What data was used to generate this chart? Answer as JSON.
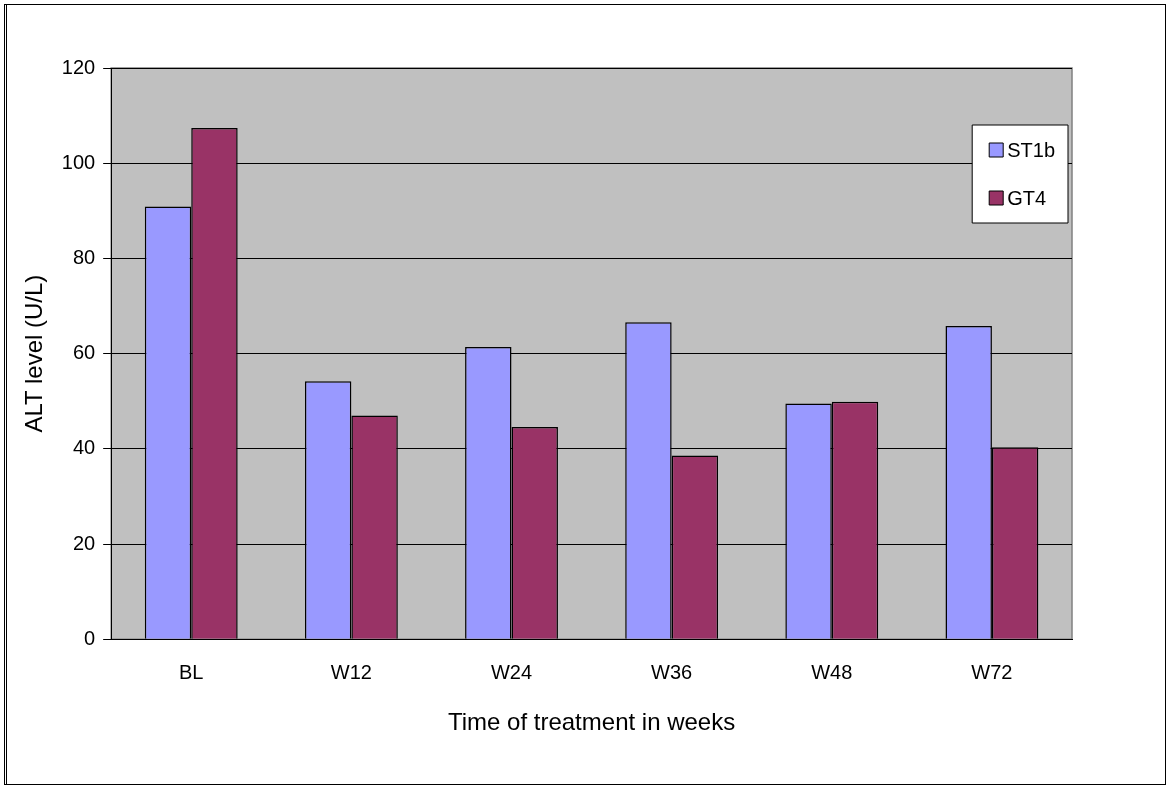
{
  "chart_data": {
    "type": "bar",
    "xlabel": "Time of treatment in weeks",
    "ylabel": "ALT level (U/L)",
    "categories": [
      "BL",
      "W12",
      "W24",
      "W36",
      "W48",
      "W72"
    ],
    "series": [
      {
        "name": "ST1b",
        "color": "#9999ff",
        "values": [
          90.9,
          54.2,
          61.4,
          66.6,
          49.5,
          65.8
        ]
      },
      {
        "name": "GT4",
        "color": "#993366",
        "values": [
          107.4,
          47.0,
          44.6,
          38.6,
          49.9,
          40.3
        ]
      }
    ],
    "ylim": [
      0,
      120
    ],
    "yticks": [
      0,
      20,
      40,
      60,
      80,
      100,
      120
    ],
    "grid": "y",
    "legend": "top right"
  }
}
